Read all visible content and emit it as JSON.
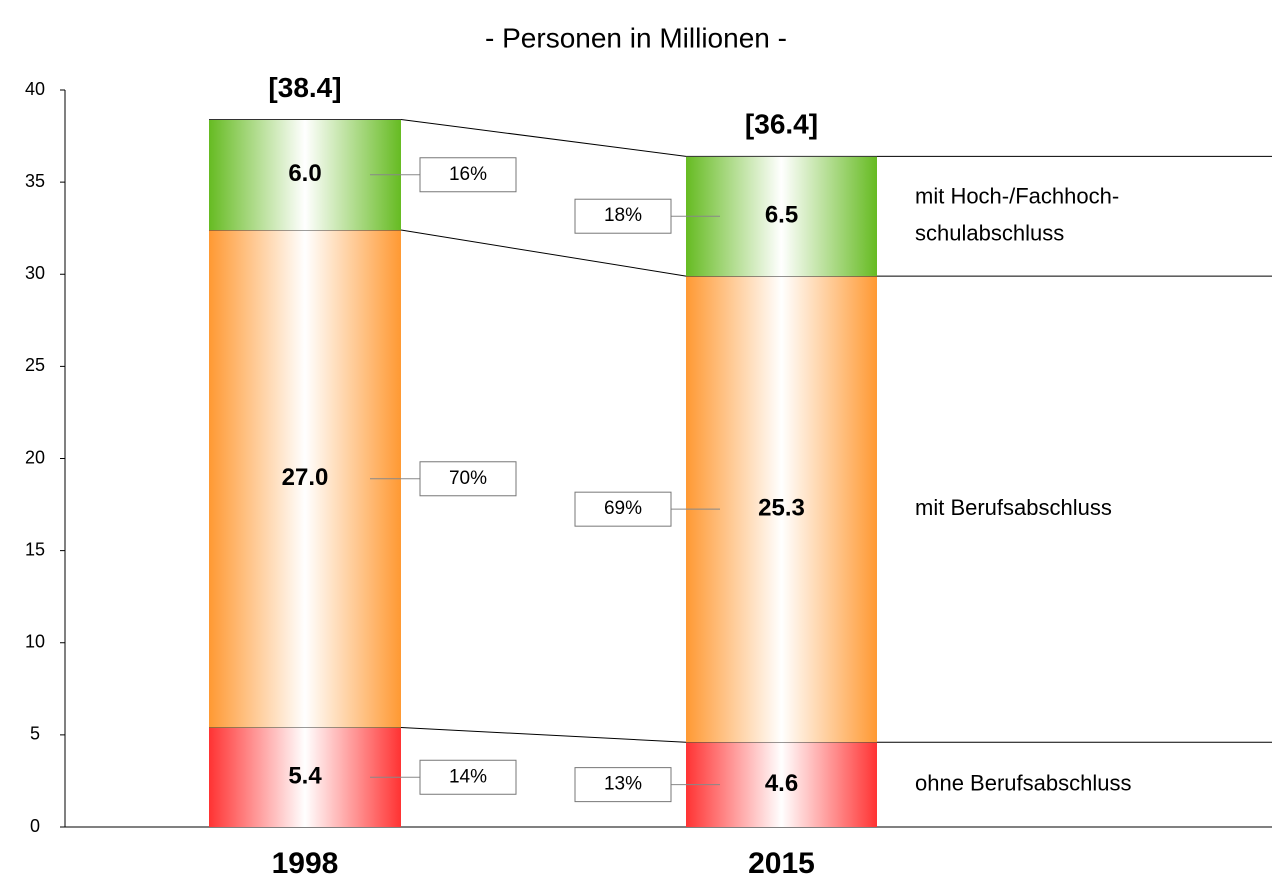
{
  "chart_data": {
    "type": "stacked_bar",
    "title": "- Personen in Millionen -",
    "categories": [
      "1998",
      "2015"
    ],
    "ylim": [
      0,
      40
    ],
    "yticks": [
      0,
      5,
      10,
      15,
      20,
      25,
      30,
      35,
      40
    ],
    "series": [
      {
        "name": "ohne Berufsabschluss",
        "color": "#ff3333",
        "values": [
          5.4,
          4.6
        ],
        "value_labels": [
          "5.4",
          "4.6"
        ],
        "shares": [
          14,
          13
        ],
        "share_labels": [
          "14%",
          "13%"
        ]
      },
      {
        "name": "mit Berufsabschluss",
        "color": "#ff9933",
        "values": [
          27.0,
          25.3
        ],
        "value_labels": [
          "27.0",
          "25.3"
        ],
        "shares": [
          70,
          69
        ],
        "share_labels": [
          "70%",
          "69%"
        ]
      },
      {
        "name": "mit Hoch-/Fachhoch-\nschulabschluss",
        "color": "#66bb22",
        "values": [
          6.0,
          6.5
        ],
        "value_labels": [
          "6.0",
          "6.5"
        ],
        "shares": [
          16,
          18
        ],
        "share_labels": [
          "16%",
          "18%"
        ]
      }
    ],
    "totals": [
      38.4,
      36.4
    ],
    "total_labels": [
      "[38.4]",
      "[36.4]"
    ]
  }
}
